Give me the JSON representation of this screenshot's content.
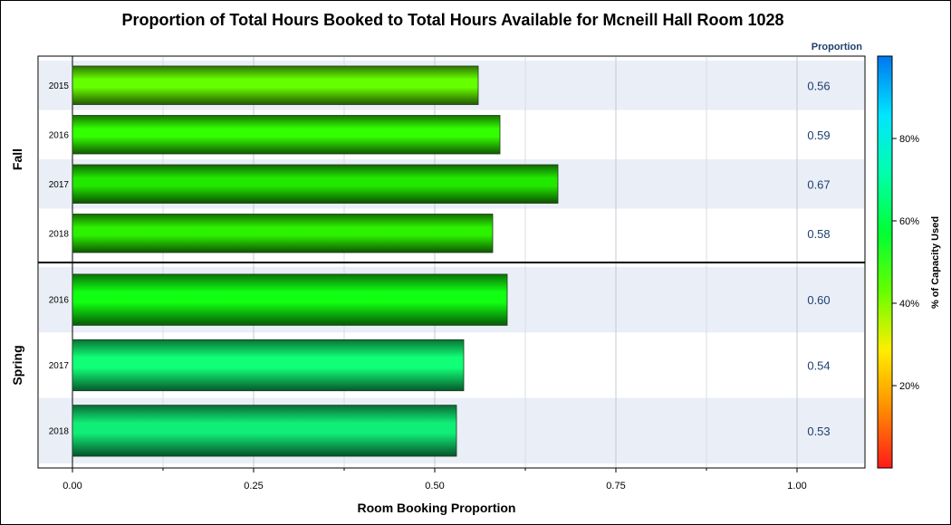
{
  "chart_data": {
    "type": "bar",
    "orientation": "horizontal",
    "title": "Proportion of Total Hours Booked to Total Hours Available for Mcneill Hall Room 1028",
    "xlabel": "Room Booking Proportion",
    "xlim": [
      0,
      1.15
    ],
    "xticks": [
      0,
      0.25,
      0.5,
      0.75,
      1.0
    ],
    "xtick_labels": [
      "0.00",
      "0.25",
      "0.50",
      "0.75",
      "1.00"
    ],
    "value_column_header": "Proportion",
    "panels": [
      {
        "name": "Fall",
        "bars": [
          {
            "year": "2015",
            "value": 0.56,
            "label": "0.56",
            "color": "#66ff00"
          },
          {
            "year": "2016",
            "value": 0.59,
            "label": "0.59",
            "color": "#33ff00"
          },
          {
            "year": "2017",
            "value": 0.67,
            "label": "0.67",
            "color": "#22e800"
          },
          {
            "year": "2018",
            "value": 0.58,
            "label": "0.58",
            "color": "#2cf200"
          }
        ]
      },
      {
        "name": "Spring",
        "bars": [
          {
            "year": "2016",
            "value": 0.6,
            "label": "0.60",
            "color": "#11ff11"
          },
          {
            "year": "2017",
            "value": 0.54,
            "label": "0.54",
            "color": "#11ff77"
          },
          {
            "year": "2018",
            "value": 0.53,
            "label": "0.53",
            "color": "#11ee77"
          }
        ]
      }
    ],
    "legend": {
      "title": "% of Capacity Used",
      "ticks": [
        "20%",
        "40%",
        "60%",
        "80%"
      ],
      "tick_values": [
        0.2,
        0.4,
        0.6,
        0.8
      ],
      "range": [
        0,
        1
      ],
      "colors": [
        "#ff1a1a",
        "#ff8c00",
        "#ffee00",
        "#66ff00",
        "#00ff33",
        "#00ffaa",
        "#00e5ff",
        "#0077ee"
      ]
    },
    "band_color": "#eaeef7",
    "value_color": "#1f3f6e"
  }
}
